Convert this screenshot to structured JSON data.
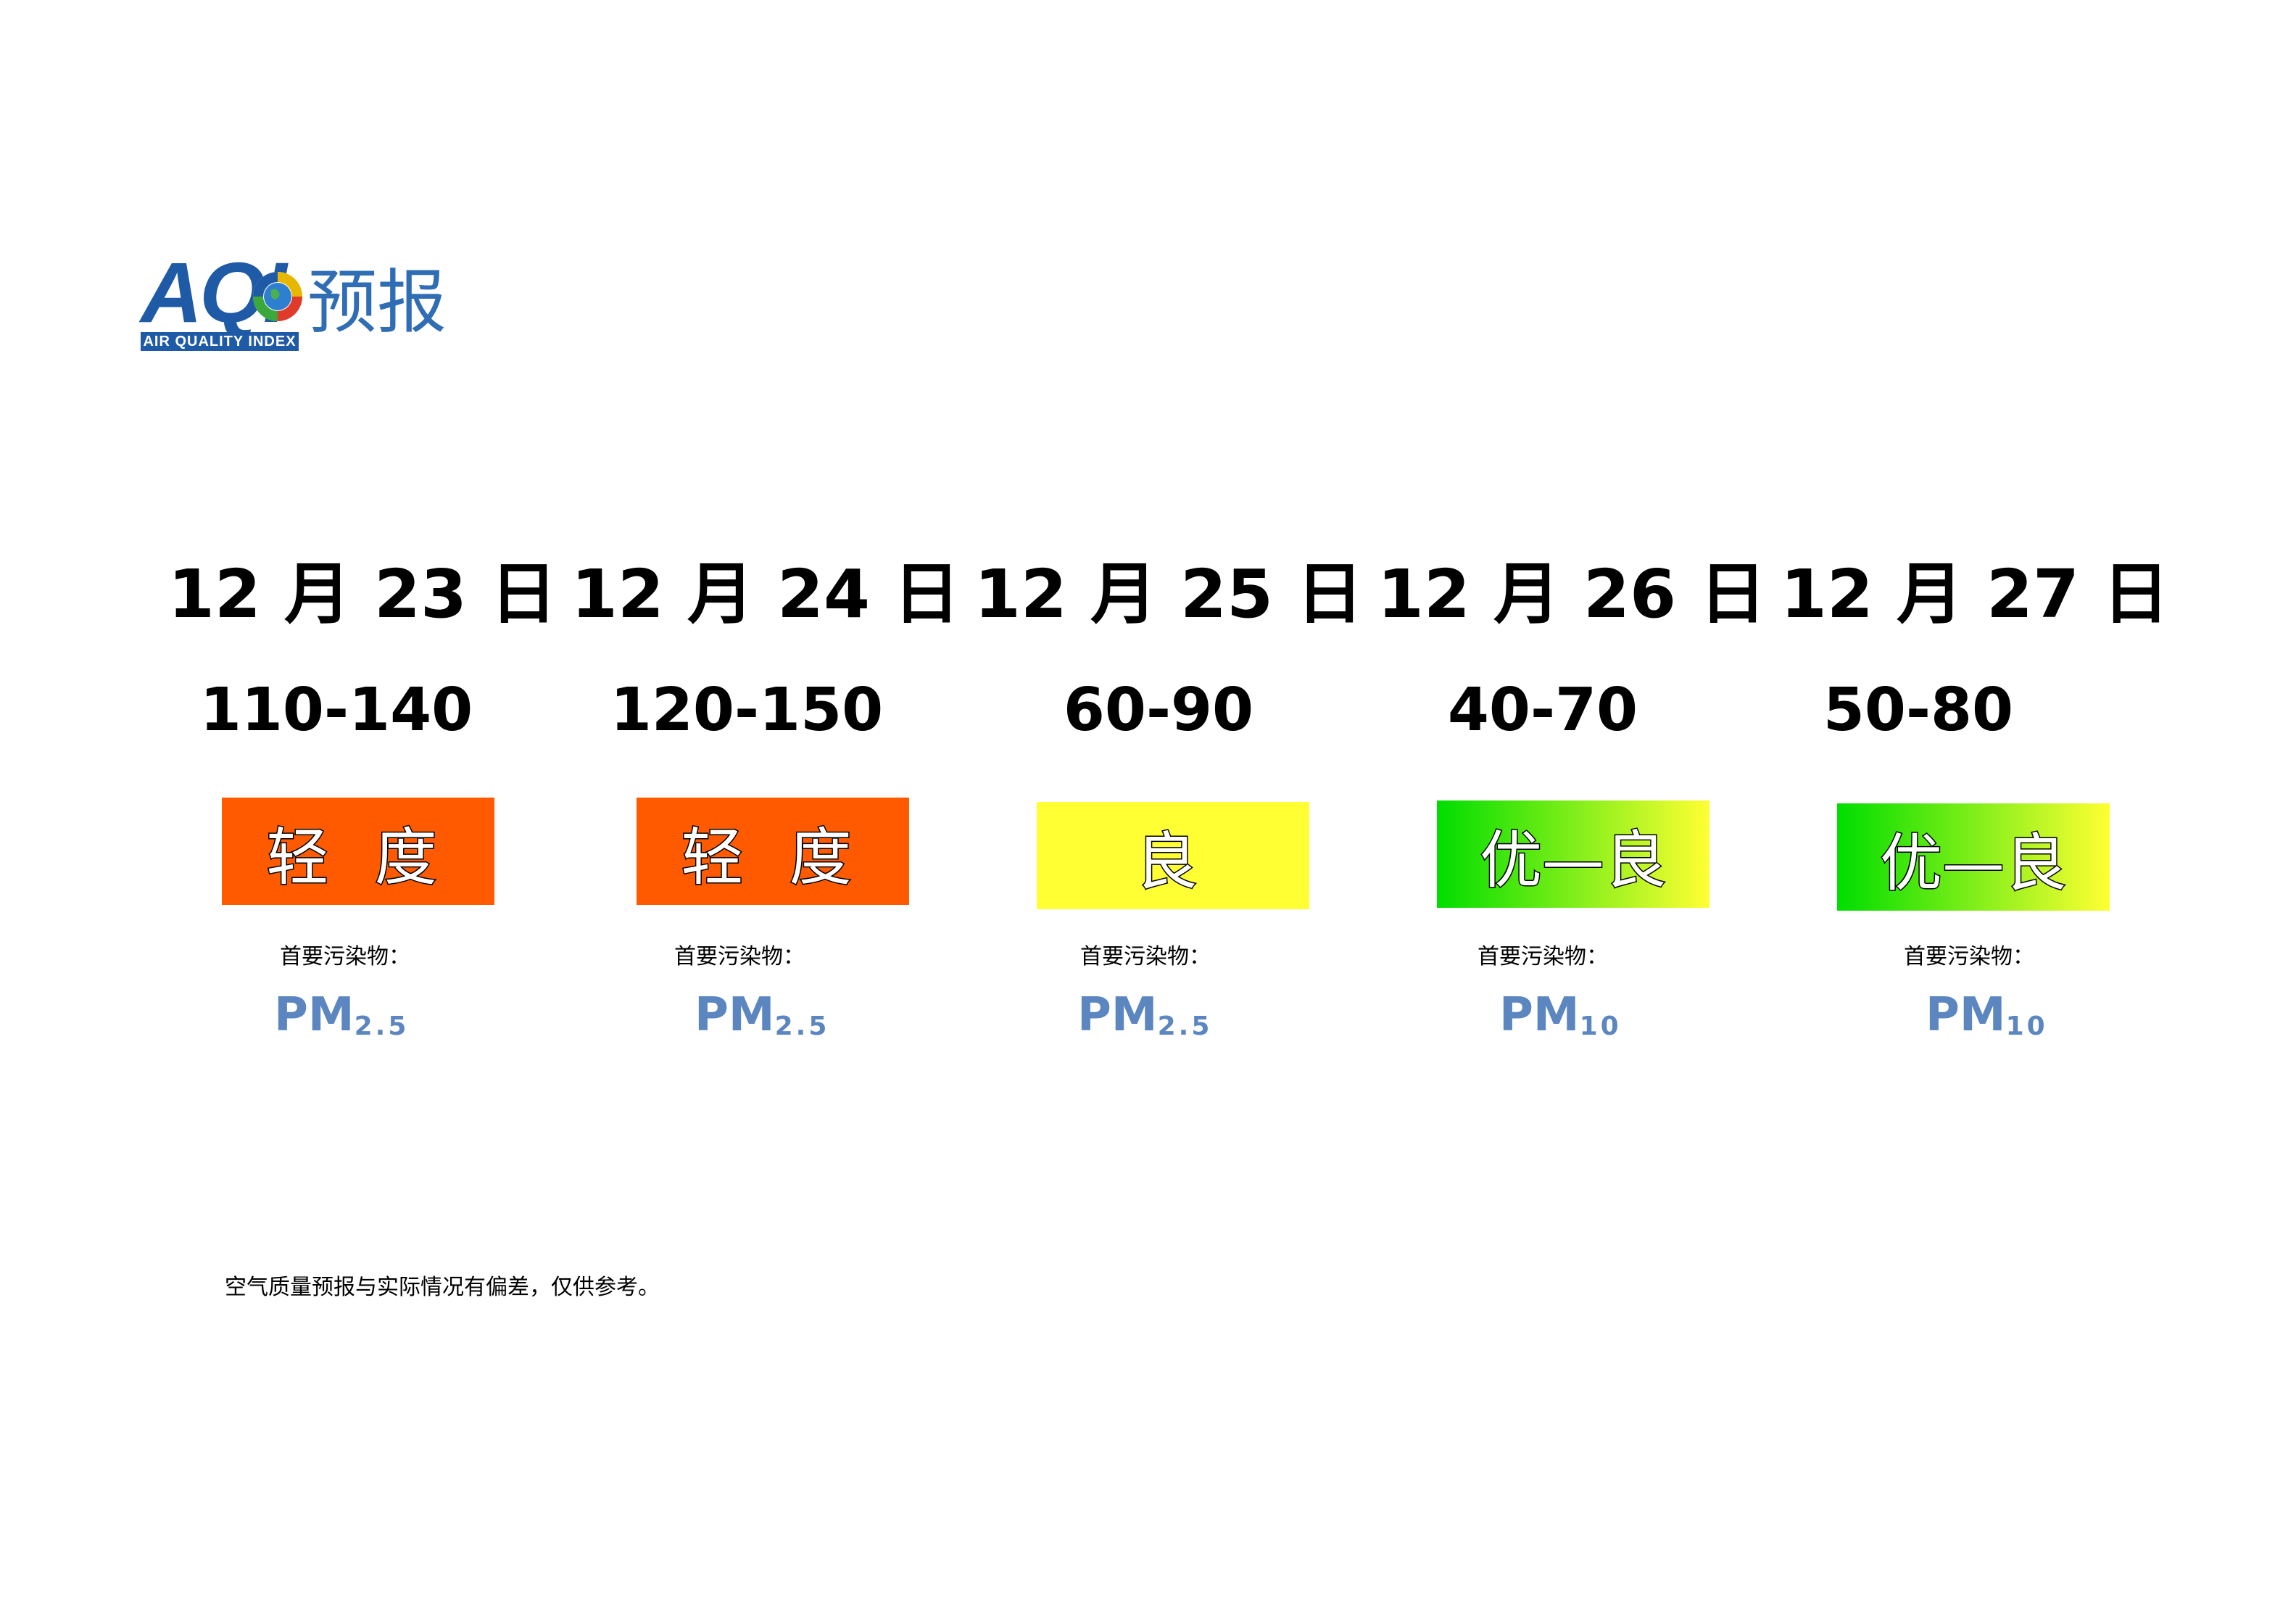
{
  "logo": {
    "mark": "AQI",
    "band": "AIR QUALITY INDEX",
    "title": "预报"
  },
  "forecast": [
    {
      "date": "12 月 23 日",
      "range": "110-140",
      "level": "轻 度",
      "level_color": "#ff5a00",
      "pollutant_label": "首要污染物：",
      "pollutant": "PM",
      "pollutant_sub": "2.5"
    },
    {
      "date": "12 月 24 日",
      "range": "120-150",
      "level": "轻 度",
      "level_color": "#ff5a00",
      "pollutant_label": "首要污染物：",
      "pollutant": "PM",
      "pollutant_sub": "2.5"
    },
    {
      "date": "12 月 25 日",
      "range": "60-90",
      "level": "良",
      "level_color": "#ffff33",
      "pollutant_label": "首要污染物：",
      "pollutant": "PM",
      "pollutant_sub": "2.5"
    },
    {
      "date": "12 月 26 日",
      "range": "40-70",
      "level": "优—良",
      "level_color": "gradient #00dd00 → #ffff33",
      "pollutant_label": "首要污染物：",
      "pollutant": "PM",
      "pollutant_sub": "10"
    },
    {
      "date": "12 月 27 日",
      "range": "50-80",
      "level": "优—良",
      "level_color": "gradient #00dd00 → #ffff33",
      "pollutant_label": "首要污染物：",
      "pollutant": "PM",
      "pollutant_sub": "10"
    }
  ],
  "note": "空气质量预报与实际情况有偏差，仅供参考。"
}
